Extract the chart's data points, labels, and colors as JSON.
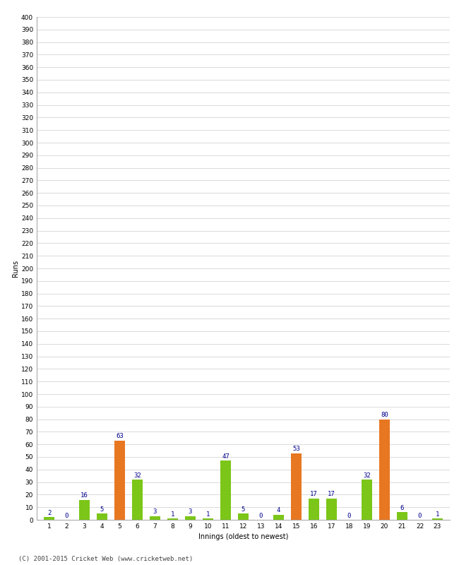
{
  "xlabel": "Innings (oldest to newest)",
  "ylabel": "Runs",
  "footer": "(C) 2001-2015 Cricket Web (www.cricketweb.net)",
  "ylim": [
    0,
    400
  ],
  "innings": [
    1,
    2,
    3,
    4,
    5,
    6,
    7,
    8,
    9,
    10,
    11,
    12,
    13,
    14,
    15,
    16,
    17,
    18,
    19,
    20,
    21,
    22,
    23
  ],
  "values": [
    2,
    0,
    16,
    5,
    63,
    32,
    3,
    1,
    3,
    1,
    47,
    5,
    0,
    4,
    53,
    17,
    17,
    0,
    32,
    80,
    6,
    0,
    1
  ],
  "colors": [
    "#7bc618",
    "#7bc618",
    "#7bc618",
    "#7bc618",
    "#e87722",
    "#7bc618",
    "#7bc618",
    "#7bc618",
    "#7bc618",
    "#7bc618",
    "#7bc618",
    "#7bc618",
    "#7bc618",
    "#7bc618",
    "#e87722",
    "#7bc618",
    "#7bc618",
    "#7bc618",
    "#7bc618",
    "#e87722",
    "#7bc618",
    "#7bc618",
    "#7bc618"
  ],
  "label_color": "#00008b",
  "bg_color": "#ffffff",
  "grid_color": "#cccccc",
  "bar_width": 0.6,
  "title_fontsize": 9,
  "label_fontsize": 6.5,
  "tick_fontsize": 6.5,
  "ylabel_fontsize": 7,
  "xlabel_fontsize": 7,
  "footer_fontsize": 6.5
}
